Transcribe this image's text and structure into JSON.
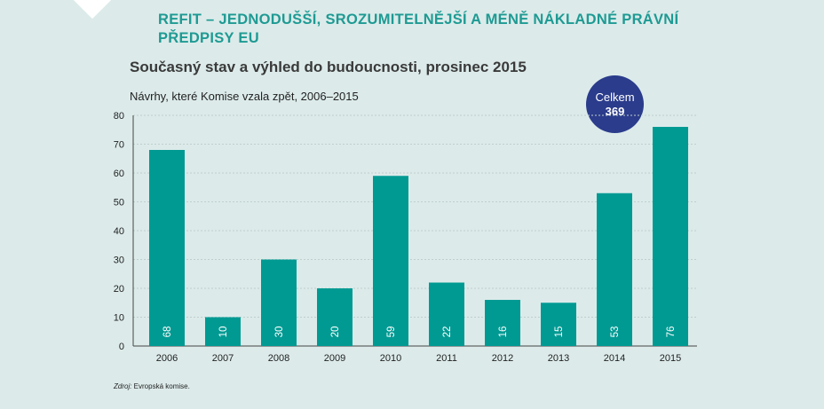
{
  "header": {
    "title": "REFIT – JEDNODUŠŠÍ, SROZUMITELNĚJŠÍ A MÉNĚ NÁKLADNÉ PRÁVNÍ PŘEDPISY EU"
  },
  "badge": {
    "label": "Celkem",
    "value": "369",
    "color": "#2b3c8c"
  },
  "source": {
    "prefix": "Zdroj:",
    "text": " Evropská komise."
  },
  "chart_data": {
    "type": "bar",
    "title": "Současný stav a výhled do budoucnosti, prosinec 2015",
    "subtitle": "Návrhy, které Komise vzala zpět, 2006–2015",
    "categories": [
      "2006",
      "2007",
      "2008",
      "2009",
      "2010",
      "2011",
      "2012",
      "2013",
      "2014",
      "2015"
    ],
    "values": [
      68,
      10,
      30,
      20,
      59,
      22,
      16,
      15,
      53,
      76
    ],
    "ylim": [
      0,
      80
    ],
    "yticks": [
      0,
      10,
      20,
      30,
      40,
      50,
      60,
      70,
      80
    ],
    "grid": true,
    "bar_color": "#009a93",
    "grid_color": "#bfcfcd"
  }
}
